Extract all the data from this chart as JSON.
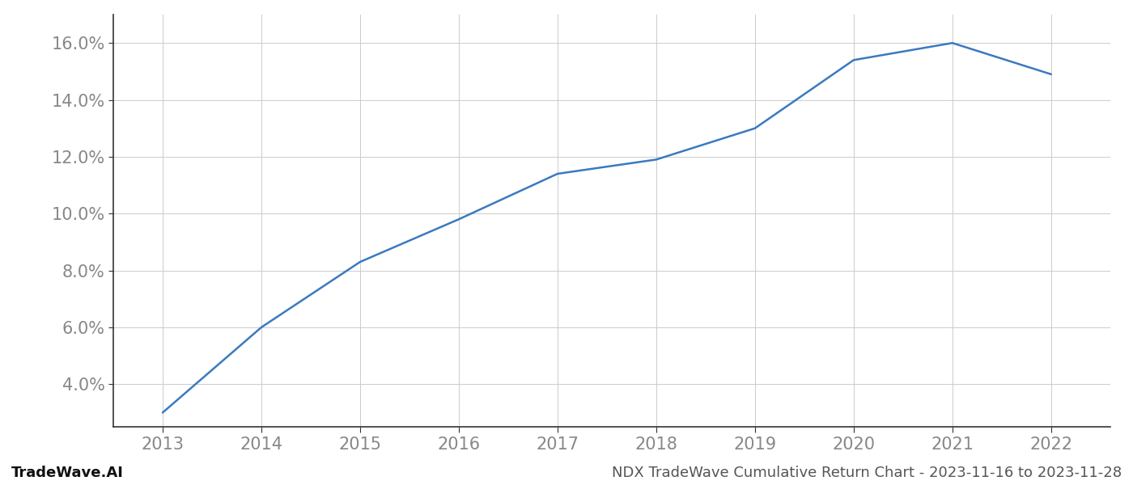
{
  "x_years": [
    2013,
    2014,
    2015,
    2016,
    2017,
    2018,
    2019,
    2020,
    2021,
    2022
  ],
  "y_values": [
    3.0,
    6.0,
    8.3,
    9.8,
    11.4,
    11.9,
    13.0,
    15.4,
    16.0,
    14.9
  ],
  "line_color": "#3a7abf",
  "line_width": 1.8,
  "background_color": "#ffffff",
  "grid_color": "#cccccc",
  "ylabel_values": [
    4.0,
    6.0,
    8.0,
    10.0,
    12.0,
    14.0,
    16.0
  ],
  "xlim": [
    2012.5,
    2022.6
  ],
  "ylim": [
    2.5,
    17.0
  ],
  "tick_fontsize": 15,
  "tick_color": "#888888",
  "footer_left": "TradeWave.AI",
  "footer_right": "NDX TradeWave Cumulative Return Chart - 2023-11-16 to 2023-11-28",
  "footer_fontsize": 13,
  "spine_color": "#333333",
  "grid_linewidth": 0.7
}
